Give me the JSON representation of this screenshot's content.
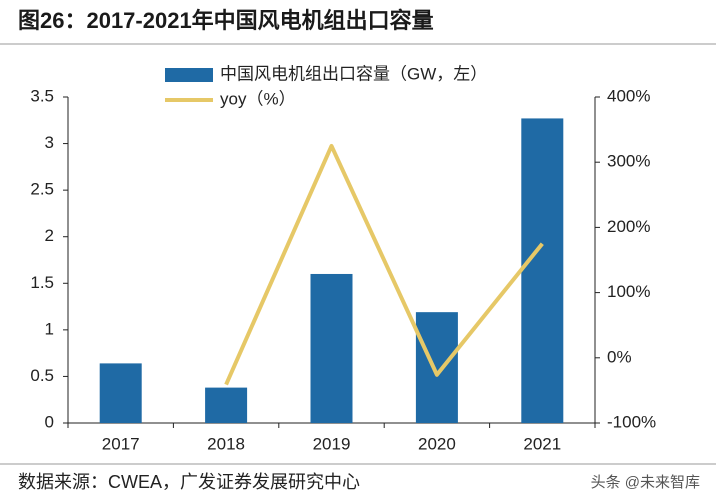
{
  "chart_data": {
    "type": "bar_line",
    "title": "图26：2017-2021年中国风电机组出口容量",
    "source": "数据来源：CWEA，广发证券发展研究中心",
    "watermark": "头条 @未来智库",
    "categories": [
      "2017",
      "2018",
      "2019",
      "2020",
      "2021"
    ],
    "series": [
      {
        "name": "中国风电机组出口容量（GW，左）",
        "color": "#1f6aa5",
        "type": "bar",
        "values": [
          0.64,
          0.38,
          1.6,
          1.19,
          3.27
        ]
      },
      {
        "name": "yoy（%）",
        "color": "#e6c867",
        "type": "line",
        "axis": "y2",
        "values": [
          null,
          -41,
          325,
          -26,
          175
        ]
      }
    ],
    "ylim": [
      0,
      3.5
    ],
    "yticks": [
      0,
      0.5,
      1,
      1.5,
      2,
      2.5,
      3,
      3.5
    ],
    "y2lim": [
      -100,
      400
    ],
    "y2ticks": [
      {
        "value": -100,
        "label": "-100%"
      },
      {
        "value": 0,
        "label": "0%"
      },
      {
        "value": 100,
        "label": "100%"
      },
      {
        "value": 200,
        "label": "200%"
      },
      {
        "value": 300,
        "label": "300%"
      },
      {
        "value": 400,
        "label": "400%"
      }
    ]
  }
}
